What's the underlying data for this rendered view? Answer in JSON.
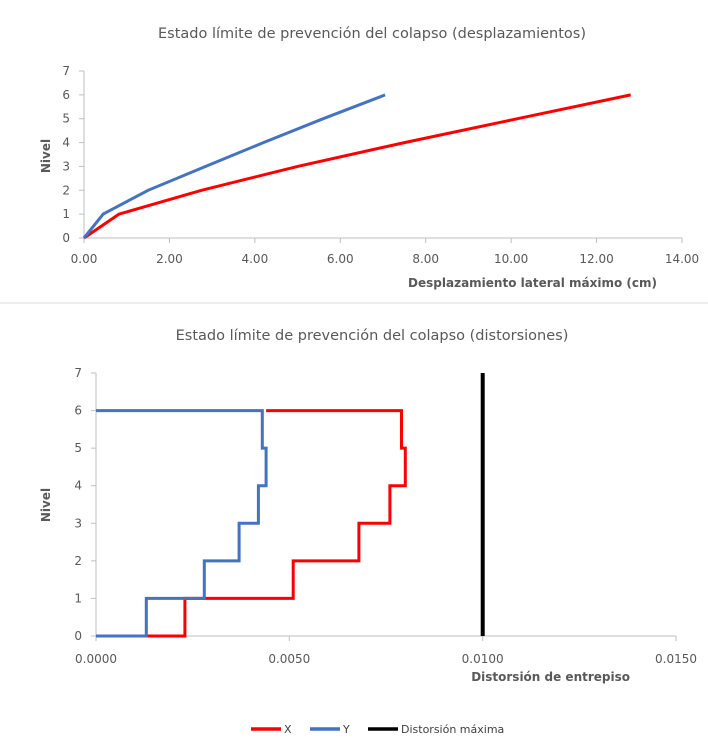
{
  "chart_data": [
    {
      "type": "line",
      "title": "Estado límite de prevención del colapso (desplazamientos)",
      "xlabel": "Desplazamiento lateral máximo (cm)",
      "ylabel": "Nivel",
      "xlim": [
        0,
        14
      ],
      "ylim": [
        0,
        7
      ],
      "x_ticks": [
        "0.00",
        "2.00",
        "4.00",
        "6.00",
        "8.00",
        "10.00",
        "12.00",
        "14.00"
      ],
      "y_ticks": [
        "0",
        "1",
        "2",
        "3",
        "4",
        "5",
        "6",
        "7"
      ],
      "grid": false,
      "series": [
        {
          "name": "X",
          "color": "#ff0000",
          "points": [
            [
              0,
              0
            ],
            [
              0.82,
              1
            ],
            [
              2.75,
              2
            ],
            [
              5.0,
              3
            ],
            [
              7.5,
              4
            ],
            [
              10.15,
              5
            ],
            [
              12.8,
              6
            ]
          ]
        },
        {
          "name": "Y",
          "color": "#4472c4",
          "points": [
            [
              0,
              0
            ],
            [
              0.45,
              1
            ],
            [
              1.5,
              2
            ],
            [
              2.85,
              3
            ],
            [
              4.2,
              4
            ],
            [
              5.6,
              5
            ],
            [
              7.05,
              6
            ]
          ]
        }
      ]
    },
    {
      "type": "line",
      "title": "Estado límite de prevención del colapso (distorsiones)",
      "xlabel": "Distorsión de entrepiso",
      "ylabel": "Nivel",
      "xlim": [
        0,
        0.015
      ],
      "ylim": [
        0,
        7
      ],
      "x_ticks": [
        "0.0000",
        "0.0050",
        "0.0100",
        "0.0150"
      ],
      "y_ticks": [
        "0",
        "1",
        "2",
        "3",
        "4",
        "5",
        "6",
        "7"
      ],
      "grid": false,
      "legend_position": "bottom",
      "series": [
        {
          "name": "X",
          "color": "#ff0000",
          "points": [
            [
              0.0013,
              0
            ],
            [
              0.0023,
              0
            ],
            [
              0.0023,
              1
            ],
            [
              0.0051,
              1
            ],
            [
              0.0051,
              2
            ],
            [
              0.0068,
              2
            ],
            [
              0.0068,
              3
            ],
            [
              0.0076,
              3
            ],
            [
              0.0076,
              4
            ],
            [
              0.008,
              4
            ],
            [
              0.008,
              5
            ],
            [
              0.0079,
              5
            ],
            [
              0.0079,
              6
            ],
            [
              0.0044,
              6
            ]
          ]
        },
        {
          "name": "Y",
          "color": "#4472c4",
          "points": [
            [
              0,
              0
            ],
            [
              0.0013,
              0
            ],
            [
              0.0013,
              1
            ],
            [
              0.0028,
              1
            ],
            [
              0.0028,
              2
            ],
            [
              0.0037,
              2
            ],
            [
              0.0037,
              3
            ],
            [
              0.0042,
              3
            ],
            [
              0.0042,
              4
            ],
            [
              0.0044,
              4
            ],
            [
              0.0044,
              5
            ],
            [
              0.0043,
              5
            ],
            [
              0.0043,
              6
            ],
            [
              0,
              6
            ]
          ]
        },
        {
          "name": "Distorsión máxima",
          "color": "#000000",
          "points": [
            [
              0.01,
              0
            ],
            [
              0.01,
              7
            ]
          ]
        }
      ]
    }
  ]
}
